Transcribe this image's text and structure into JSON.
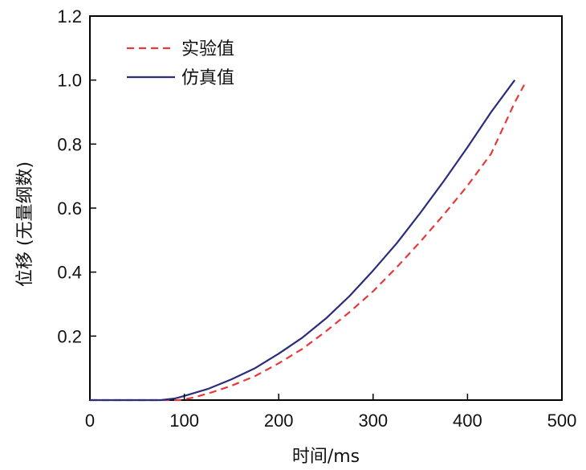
{
  "chart_data": {
    "type": "line",
    "title": "",
    "xlabel": "时间/ms",
    "ylabel": "位移 (无量纲数)",
    "xlim": [
      0,
      500
    ],
    "ylim": [
      0,
      1.2
    ],
    "xticks": [
      0,
      100,
      200,
      300,
      400,
      500
    ],
    "yticks": [
      0.2,
      0.4,
      0.6,
      0.8,
      1.0,
      1.2
    ],
    "xtick_labels": [
      "0",
      "100",
      "200",
      "300",
      "400",
      "500"
    ],
    "ytick_labels": [
      "0.2",
      "0.4",
      "0.6",
      "0.8",
      "1.0",
      "1.2"
    ],
    "grid": false,
    "legend_position": "top-left",
    "series": [
      {
        "name": "实验值",
        "color": "#e8393a",
        "style": "dashed",
        "x": [
          0,
          50,
          95,
          110,
          130,
          150,
          175,
          200,
          225,
          250,
          275,
          300,
          325,
          350,
          375,
          400,
          425,
          450,
          460
        ],
        "y": [
          0,
          0,
          0,
          0.008,
          0.025,
          0.045,
          0.075,
          0.115,
          0.16,
          0.215,
          0.275,
          0.34,
          0.415,
          0.495,
          0.58,
          0.67,
          0.77,
          0.93,
          0.985
        ]
      },
      {
        "name": "仿真值",
        "color": "#2b2c7c",
        "style": "solid",
        "x": [
          0,
          50,
          75,
          90,
          100,
          125,
          150,
          175,
          200,
          225,
          250,
          275,
          300,
          325,
          350,
          375,
          400,
          425,
          450
        ],
        "y": [
          0,
          0,
          0,
          0.005,
          0.013,
          0.035,
          0.065,
          0.1,
          0.145,
          0.195,
          0.255,
          0.325,
          0.405,
          0.49,
          0.585,
          0.685,
          0.79,
          0.9,
          1.0
        ]
      }
    ]
  }
}
